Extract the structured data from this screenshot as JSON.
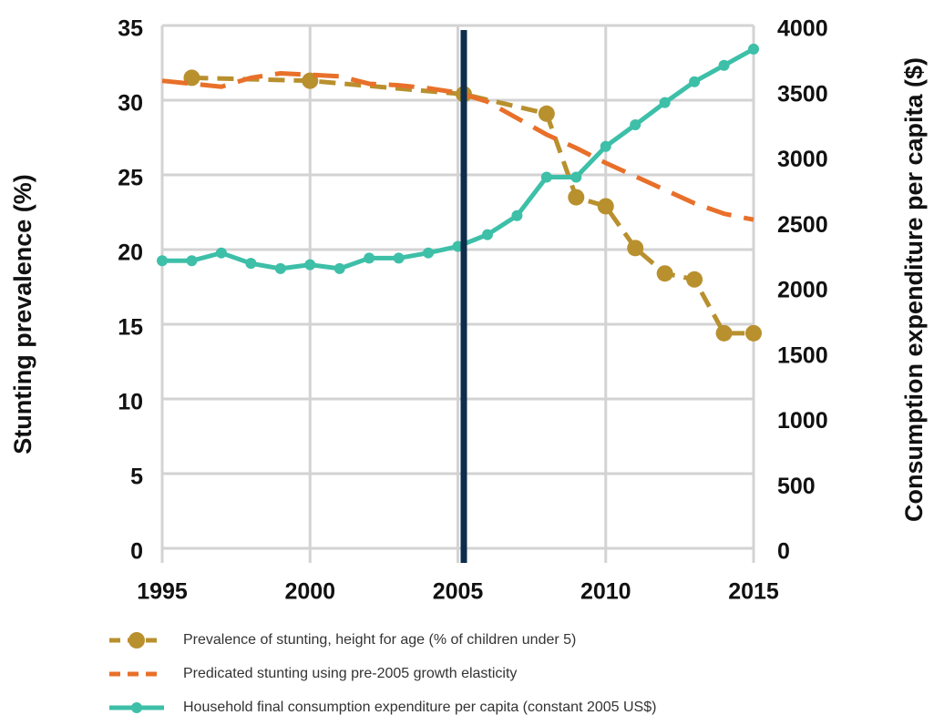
{
  "chart_data": {
    "type": "line",
    "y_label": "Stunting prevalence (%)",
    "y2_label": "Consumption expenditure per capita ($)",
    "xlim": [
      1995,
      2015
    ],
    "xticks": [
      1995,
      2000,
      2005,
      2010,
      2015
    ],
    "ylim": [
      0,
      35
    ],
    "yticks": [
      0,
      5,
      10,
      15,
      20,
      25,
      30,
      35
    ],
    "y2lim": [
      0,
      4000
    ],
    "y2ticks": [
      0,
      500,
      1000,
      1500,
      2000,
      2500,
      3000,
      3500,
      4000
    ],
    "grid": true,
    "vline": 2005.2,
    "vline_color": "#0d2d4d",
    "series": [
      {
        "name": "Prevalence of stunting, height for age (% of children under 5)",
        "color": "#b8902e",
        "dash": "18 10",
        "marker": 9,
        "x": [
          1996,
          2000,
          2005.2,
          2008,
          2009,
          2010,
          2011,
          2012,
          2013,
          2014,
          2015
        ],
        "values": [
          31.5,
          31.3,
          30.4,
          29.1,
          23.5,
          22.9,
          20.1,
          18.4,
          18.0,
          14.4,
          14.4
        ]
      },
      {
        "name": "Predicated stunting using pre-2005 growth elasticity",
        "color": "#e8702a",
        "dash": "28 14",
        "marker": 0,
        "x": [
          1995,
          1996,
          1997,
          1998,
          1999,
          2000,
          2001,
          2002,
          2003,
          2004,
          2005,
          2006,
          2007,
          2008,
          2009,
          2010,
          2011,
          2012,
          2013,
          2014,
          2015
        ],
        "values": [
          31.3,
          31.1,
          30.9,
          31.5,
          31.8,
          31.7,
          31.6,
          31.1,
          31.0,
          30.8,
          30.5,
          29.9,
          28.8,
          27.7,
          26.8,
          25.8,
          24.9,
          24.0,
          23.1,
          22.4,
          22.0
        ]
      },
      {
        "name": "Household final consumption expenditure per capita (constant 2005 US$)",
        "color": "#3dbfa8",
        "dash": "none",
        "marker": 6,
        "axis": "y2",
        "x": [
          1995,
          1996,
          1997,
          1998,
          1999,
          2000,
          2001,
          2002,
          2003,
          2004,
          2005,
          2006,
          2007,
          2008,
          2009,
          2010,
          2011,
          2012,
          2013,
          2014,
          2015
        ],
        "values": [
          2200,
          2200,
          2260,
          2180,
          2140,
          2170,
          2140,
          2220,
          2220,
          2260,
          2310,
          2400,
          2545,
          2840,
          2840,
          3075,
          3240,
          3410,
          3570,
          3695,
          3820
        ]
      }
    ]
  }
}
